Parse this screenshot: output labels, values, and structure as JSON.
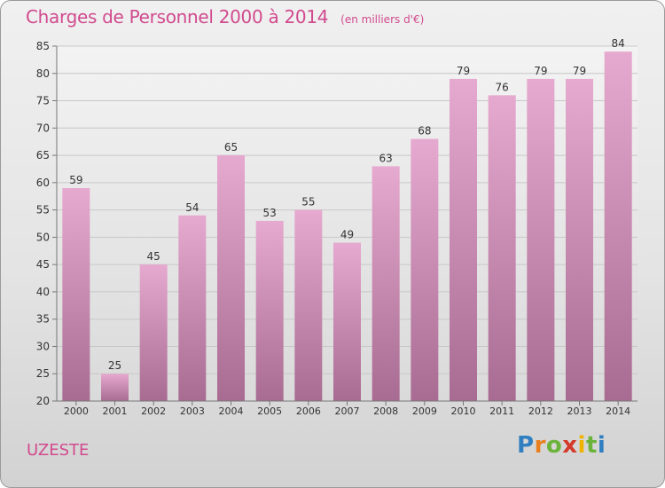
{
  "title": "Charges de Personnel 2000 à 2014",
  "subtitle": "(en milliers d'€)",
  "commune": "UZESTE",
  "logo": [
    "P",
    "r",
    "o",
    "x",
    "i",
    "t",
    "i"
  ],
  "colors": {
    "title": "#d14a8e",
    "bar_top": "#e6a9cf",
    "bar_bottom": "#a86b92",
    "grid": "#c8c8c8"
  },
  "chart_data": {
    "type": "bar",
    "categories": [
      "2000",
      "2001",
      "2002",
      "2003",
      "2004",
      "2005",
      "2006",
      "2007",
      "2008",
      "2009",
      "2010",
      "2011",
      "2012",
      "2013",
      "2014"
    ],
    "values": [
      59,
      25,
      45,
      54,
      65,
      53,
      55,
      49,
      63,
      68,
      79,
      76,
      79,
      79,
      84
    ],
    "ylim": [
      20,
      85
    ],
    "yticks": [
      20,
      25,
      30,
      35,
      40,
      45,
      50,
      55,
      60,
      65,
      70,
      75,
      80,
      85
    ],
    "grid": true,
    "data_labels": true
  }
}
